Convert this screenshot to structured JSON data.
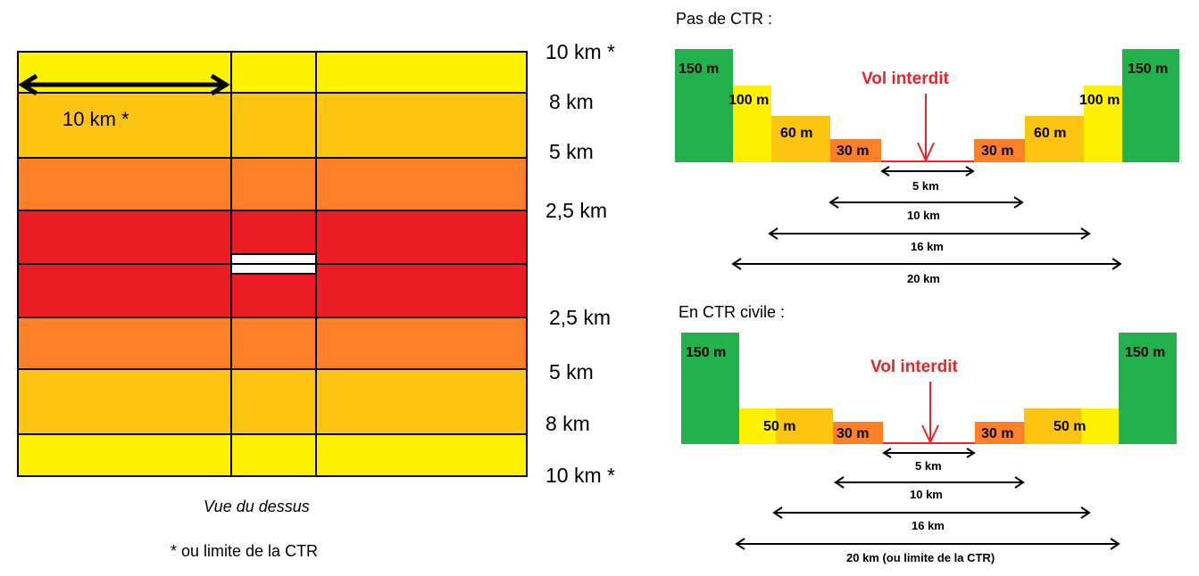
{
  "top_view": {
    "zone_labels_top": [
      "10 km *",
      "8 km",
      "5 km",
      "2,5 km"
    ],
    "zone_labels_bottom": [
      "2,5 km",
      "5 km",
      "8 km",
      "10 km *"
    ],
    "width_label": "10 km *",
    "caption": "Vue du dessus",
    "footnote": "* ou limite de la CTR",
    "colors": {
      "yellow": "#fef200",
      "light_orange": "#fdc512",
      "orange": "#fd7f27",
      "red": "#eb1c24",
      "green": "#22b14c"
    }
  },
  "pas_de_ctr": {
    "title": "Pas de CTR :",
    "forbidden": "Vol interdit",
    "heights": [
      "150 m",
      "100 m",
      "60 m",
      "30 m"
    ],
    "distances": [
      "5 km",
      "10 km",
      "16 km",
      "20 km"
    ]
  },
  "ctr_civile": {
    "title": "En CTR civile :",
    "forbidden": "Vol interdit",
    "heights": [
      "150 m",
      "50 m",
      "30 m"
    ],
    "distances": [
      "5 km",
      "10 km",
      "16 km",
      "20 km (ou limite de la CTR)"
    ]
  }
}
